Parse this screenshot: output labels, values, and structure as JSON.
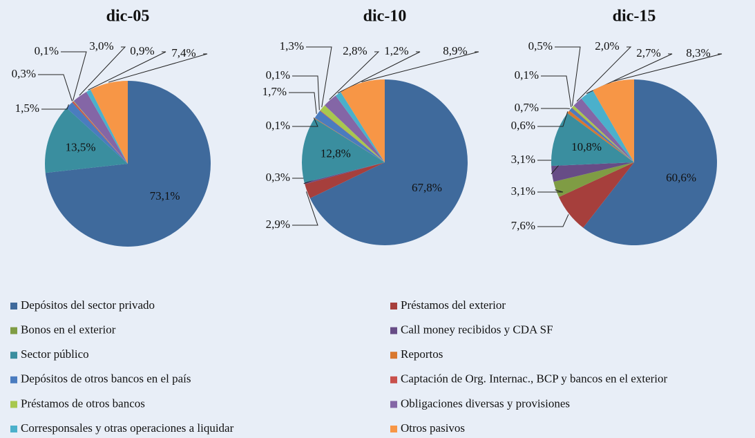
{
  "chart_data": [
    {
      "type": "pie",
      "title": "dic-05",
      "categories": [
        "Depósitos del sector privado",
        "Préstamos del exterior",
        "Bonos en el exterior",
        "Call money recibidos y CDA SF",
        "Sector público",
        "Reportos",
        "Depósitos de otros bancos en el país",
        "Captación de Org. Internac., BCP y bancos en el exterior",
        "Préstamos de otros bancos",
        "Obligaciones diversas y provisiones",
        "Corresponsales y otras operaciones a liquidar",
        "Otros pasivos"
      ],
      "colors": [
        "#3f6a9c",
        "#a63f3c",
        "#7f9c44",
        "#674c86",
        "#3a8e9f",
        "#d9782f",
        "#4a7cbf",
        "#c8504c",
        "#a8c84e",
        "#8466a6",
        "#4bb0cb",
        "#f79646"
      ],
      "values": [
        73.1,
        null,
        null,
        null,
        13.5,
        null,
        1.5,
        0.3,
        0.1,
        3.0,
        0.9,
        7.4
      ],
      "value_labels": [
        "73,1%",
        null,
        null,
        null,
        "13,5%",
        null,
        "1,5%",
        "0,3%",
        "0,1%",
        "3,0%",
        "0,9%",
        "7,4%"
      ]
    },
    {
      "type": "pie",
      "title": "dic-10",
      "categories": [
        "Depósitos del sector privado",
        "Préstamos del exterior",
        "Bonos en el exterior",
        "Call money recibidos y CDA SF",
        "Sector público",
        "Reportos",
        "Depósitos de otros bancos en el país",
        "Captación de Org. Internac., BCP y bancos en el exterior",
        "Préstamos de otros bancos",
        "Obligaciones diversas y provisiones",
        "Corresponsales y otras operaciones a liquidar",
        "Otros pasivos"
      ],
      "colors": [
        "#3f6a9c",
        "#a63f3c",
        "#7f9c44",
        "#674c86",
        "#3a8e9f",
        "#d9782f",
        "#4a7cbf",
        "#c8504c",
        "#a8c84e",
        "#8466a6",
        "#4bb0cb",
        "#f79646"
      ],
      "values": [
        67.8,
        2.9,
        null,
        0.3,
        12.8,
        0.1,
        1.7,
        0.1,
        1.3,
        2.8,
        1.2,
        8.9
      ],
      "value_labels": [
        "67,8%",
        "2,9%",
        null,
        "0,3%",
        "12,8%",
        "0,1%",
        "1,7%",
        "0,1%",
        "1,3%",
        "2,8%",
        "1,2%",
        "8,9%"
      ]
    },
    {
      "type": "pie",
      "title": "dic-15",
      "categories": [
        "Depósitos del sector privado",
        "Préstamos del exterior",
        "Bonos en el exterior",
        "Call money recibidos y CDA SF",
        "Sector público",
        "Reportos",
        "Depósitos de otros bancos en el país",
        "Captación de Org. Internac., BCP y bancos en el exterior",
        "Préstamos de otros bancos",
        "Obligaciones diversas y provisiones",
        "Corresponsales y otras operaciones a liquidar",
        "Otros pasivos"
      ],
      "colors": [
        "#3f6a9c",
        "#a63f3c",
        "#7f9c44",
        "#674c86",
        "#3a8e9f",
        "#d9782f",
        "#4a7cbf",
        "#c8504c",
        "#a8c84e",
        "#8466a6",
        "#4bb0cb",
        "#f79646"
      ],
      "values": [
        60.6,
        7.6,
        3.1,
        3.1,
        10.8,
        0.6,
        0.7,
        0.1,
        0.5,
        2.0,
        2.7,
        8.3
      ],
      "value_labels": [
        "60,6%",
        "7,6%",
        "3,1%",
        "3,1%",
        "10,8%",
        "0,6%",
        "0,7%",
        "0,1%",
        "0,5%",
        "2,0%",
        "2,7%",
        "8,3%"
      ]
    }
  ]
}
